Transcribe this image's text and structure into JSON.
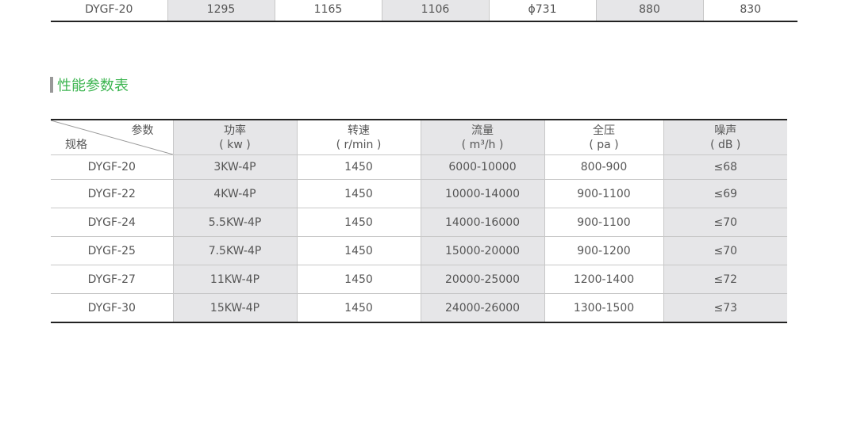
{
  "top_table": {
    "row": [
      "DYGF-20",
      "1295",
      "1165",
      "1106",
      "ϕ731",
      "880",
      "830"
    ]
  },
  "section_title": "性能参数表",
  "perf_table": {
    "corner": {
      "top": "参数",
      "bottom": "规格"
    },
    "headers": [
      {
        "name": "功率",
        "unit": "( kw )"
      },
      {
        "name": "转速",
        "unit": "( r/min )"
      },
      {
        "name": "流量",
        "unit": "( m³/h )"
      },
      {
        "name": "全压",
        "unit": "( pa )"
      },
      {
        "name": "噪声",
        "unit": "( dB )"
      }
    ],
    "rows": [
      [
        "DYGF-20",
        "3KW-4P",
        "1450",
        "6000-10000",
        "800-900",
        "≤68"
      ],
      [
        "DYGF-22",
        "4KW-4P",
        "1450",
        "10000-14000",
        "900-1100",
        "≤69"
      ],
      [
        "DYGF-24",
        "5.5KW-4P",
        "1450",
        "14000-16000",
        "900-1100",
        "≤70"
      ],
      [
        "DYGF-25",
        "7.5KW-4P",
        "1450",
        "15000-20000",
        "900-1200",
        "≤70"
      ],
      [
        "DYGF-27",
        "11KW-4P",
        "1450",
        "20000-25000",
        "1200-1400",
        "≤72"
      ],
      [
        "DYGF-30",
        "15KW-4P",
        "1450",
        "24000-26000",
        "1300-1500",
        "≤73"
      ]
    ]
  },
  "colors": {
    "title": "#3cb550",
    "shade": "#e6e6e8"
  }
}
